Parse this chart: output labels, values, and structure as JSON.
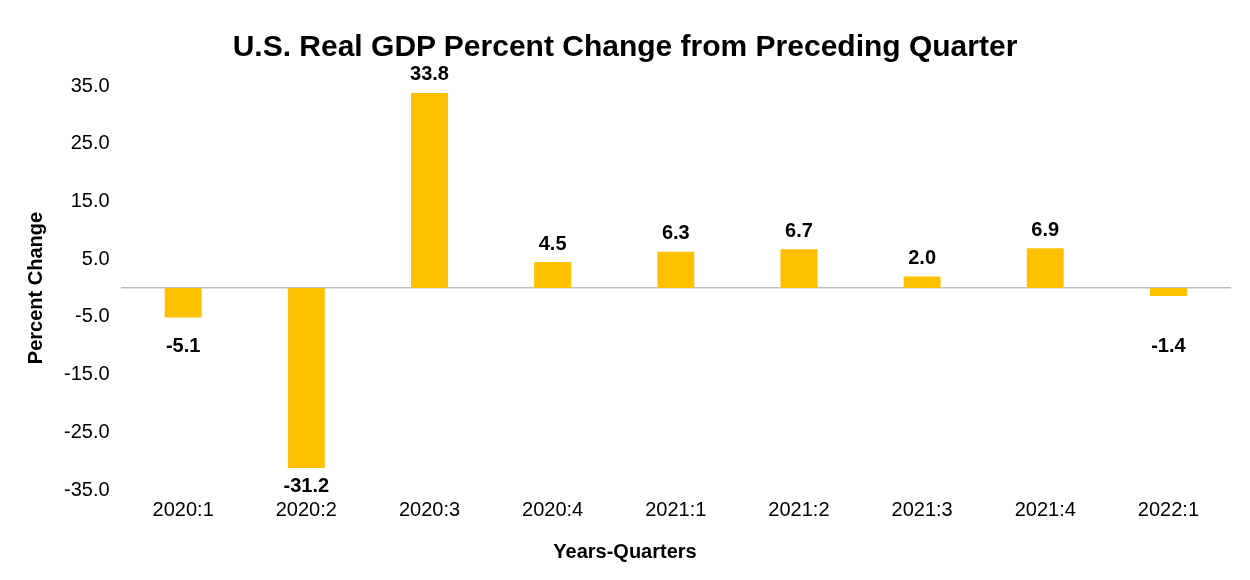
{
  "chart_data": {
    "type": "bar",
    "title": "U.S. Real GDP Percent Change from Preceding Quarter",
    "xlabel": "Years-Quarters",
    "ylabel": "Percent Change",
    "categories": [
      "2020:1",
      "2020:2",
      "2020:3",
      "2020:4",
      "2021:1",
      "2021:2",
      "2021:3",
      "2021:4",
      "2022:1"
    ],
    "values": [
      -5.1,
      -31.2,
      33.8,
      4.5,
      6.3,
      6.7,
      2.0,
      6.9,
      -1.4
    ],
    "color": "#ffc000",
    "ylim": [
      -35,
      35
    ],
    "yticks": [
      {
        "value": -35,
        "label": "-35.0"
      },
      {
        "value": -25,
        "label": "-25.0"
      },
      {
        "value": -15,
        "label": "-15.0"
      },
      {
        "value": -5,
        "label": "-5.0"
      },
      {
        "value": 5,
        "label": "5.0"
      },
      {
        "value": 15,
        "label": "15.0"
      },
      {
        "value": 25,
        "label": "25.0"
      },
      {
        "value": 35,
        "label": "35.0"
      }
    ],
    "value_labels": [
      "-5.1",
      "-31.2",
      "33.8",
      "4.5",
      "6.3",
      "6.7",
      "2.0",
      "6.9",
      "-1.4"
    ],
    "grid": false,
    "legend": false
  }
}
